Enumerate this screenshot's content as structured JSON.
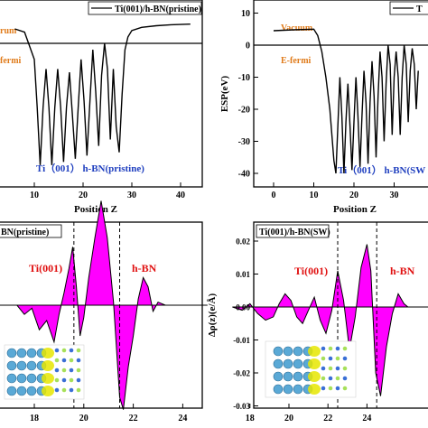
{
  "colors": {
    "fill": "#ff00ff",
    "line": "#000000",
    "label_orange": "#e07b1a",
    "label_blue": "#1f3fbf",
    "label_red": "#e01010",
    "atom_ti": "#5aa9d6",
    "atom_b": "#a7e05a",
    "atom_n": "#3a6fd6",
    "density": "#e6e600"
  },
  "chart_data": [
    {
      "type": "line",
      "panel": "top-left",
      "legend": "Ti(001)/h-BN(pristine)",
      "annotations": [
        "rum",
        "fermi",
        "Ti（001） h-BN(pristine)"
      ],
      "xlabel": "Position Z",
      "xticks": [
        "10",
        "20",
        "30",
        "40"
      ],
      "yticks": [],
      "x": [
        6,
        8,
        10,
        10.6,
        11.2,
        11.8,
        12.4,
        13.0,
        13.6,
        14.2,
        14.8,
        15.4,
        16.0,
        16.6,
        17.2,
        17.8,
        18.4,
        19.0,
        19.6,
        20.2,
        20.8,
        21.4,
        22.0,
        22.6,
        23.2,
        23.8,
        24.4,
        25.0,
        25.6,
        26.2,
        26.8,
        27.4,
        28.0,
        28.6,
        29.2,
        30,
        32,
        35,
        38,
        42
      ],
      "y": [
        4.5,
        3.5,
        -5,
        -20,
        -38,
        -20,
        -8,
        -20,
        -38,
        -20,
        -8,
        -20,
        -37,
        -20,
        -9,
        -22,
        -36,
        -20,
        -5,
        -18,
        -35,
        -18,
        -2,
        -15,
        -32,
        -10,
        0,
        -8,
        -30,
        -8,
        -26,
        -34,
        -16,
        -2,
        2,
        4,
        5,
        5.5,
        5.8,
        6
      ]
    },
    {
      "type": "line",
      "panel": "top-right",
      "legend": "T",
      "ylabel": "ESP(eV)",
      "annotations": [
        "Vacuum",
        "E-fermi",
        "Ti（001）  h-BN(SW"
      ],
      "xlabel": "Position Z",
      "xlim": [
        0,
        36
      ],
      "ylim": [
        -45,
        12
      ],
      "xticks": [
        "0",
        "10",
        "20",
        "30"
      ],
      "yticks": [
        "10",
        "0",
        "-10",
        "-20",
        "-30",
        "-40"
      ],
      "x": [
        0,
        5,
        10,
        11,
        12,
        13,
        14,
        15,
        15.5,
        16,
        16.5,
        17,
        17.5,
        18,
        18.5,
        19,
        19.5,
        20,
        20.5,
        21,
        21.5,
        22,
        22.5,
        23,
        23.5,
        24,
        24.5,
        25,
        25.5,
        26,
        26.5,
        27,
        27.5,
        28,
        28.5,
        29,
        29.5,
        30,
        30.5,
        31,
        31.5,
        32,
        32.5,
        33,
        33.5,
        34,
        34.5,
        35,
        35.5,
        36
      ],
      "y": [
        4.5,
        4.8,
        5,
        3,
        -2,
        -10,
        -20,
        -36,
        -40,
        -25,
        -10,
        -22,
        -40,
        -24,
        -12,
        -25,
        -39,
        -24,
        -10,
        -22,
        -38,
        -22,
        -8,
        -18,
        -37,
        -18,
        -5,
        -16,
        -35,
        -16,
        -2,
        -10,
        -30,
        -12,
        0,
        -6,
        -28,
        -10,
        -2,
        -10,
        -28,
        -10,
        0,
        -6,
        -24,
        -8,
        -1,
        -6,
        -20,
        -8
      ]
    },
    {
      "type": "area",
      "panel": "bottom-left",
      "legend": "BN(pristine)",
      "annotations": [
        "Ti(001)",
        "h-BN"
      ],
      "xlim": [
        16.9,
        25
      ],
      "xticks": [
        "18",
        "20",
        "22",
        "24"
      ],
      "yticks": [],
      "vlines": [
        19.6,
        21.45
      ],
      "x": [
        16.9,
        17.3,
        17.6,
        17.9,
        18.2,
        18.5,
        18.8,
        19.0,
        19.2,
        19.4,
        19.55,
        19.7,
        19.85,
        20.0,
        20.2,
        20.45,
        20.7,
        20.95,
        21.2,
        21.45,
        21.6,
        21.8,
        22.0,
        22.2,
        22.4,
        22.6,
        22.8,
        23.0,
        23.3,
        23.6,
        24.0,
        24.5,
        25.0
      ],
      "y": [
        0,
        0,
        -0.003,
        -0.001,
        -0.008,
        -0.005,
        -0.012,
        -0.003,
        0.004,
        0.012,
        0.019,
        0.006,
        -0.01,
        -0.004,
        0.009,
        0.022,
        0.034,
        0.022,
        0.001,
        -0.03,
        -0.034,
        -0.02,
        -0.01,
        0.002,
        0.009,
        0.006,
        -0.002,
        0.001,
        0,
        0,
        0,
        0,
        0
      ]
    },
    {
      "type": "area",
      "panel": "bottom-right",
      "legend": "Ti(001)/h-BN(SW)",
      "ylabel": "Δρ(z)(e/Å)",
      "annotations": [
        "Ti(001)",
        "h-BN"
      ],
      "xlim": [
        17.1,
        26.1
      ],
      "ylim": [
        -0.03,
        0.025
      ],
      "xticks": [
        "18",
        "20",
        "22",
        "24"
      ],
      "yticks": [
        "0.02",
        "0.01",
        "0.00",
        "-0.01",
        "-0.02",
        "-0.03"
      ],
      "vlines": [
        22.5,
        24.5
      ],
      "x": [
        17.1,
        17.6,
        18.0,
        18.4,
        18.8,
        19.2,
        19.5,
        19.8,
        20.1,
        20.4,
        20.7,
        21.0,
        21.3,
        21.6,
        21.9,
        22.2,
        22.5,
        22.8,
        23.1,
        23.4,
        23.7,
        24.0,
        24.2,
        24.45,
        24.7,
        25.0,
        25.3,
        25.6,
        25.9,
        26.1
      ],
      "y": [
        0,
        -0.001,
        0.001,
        -0.002,
        -0.004,
        -0.003,
        0.001,
        0.004,
        0.002,
        -0.003,
        -0.005,
        -0.001,
        0.003,
        -0.004,
        -0.008,
        -0.001,
        0.011,
        0.002,
        -0.013,
        -0.003,
        0.012,
        0.019,
        0.011,
        -0.02,
        -0.027,
        -0.012,
        -0.002,
        0.004,
        0.001,
        0
      ]
    }
  ]
}
